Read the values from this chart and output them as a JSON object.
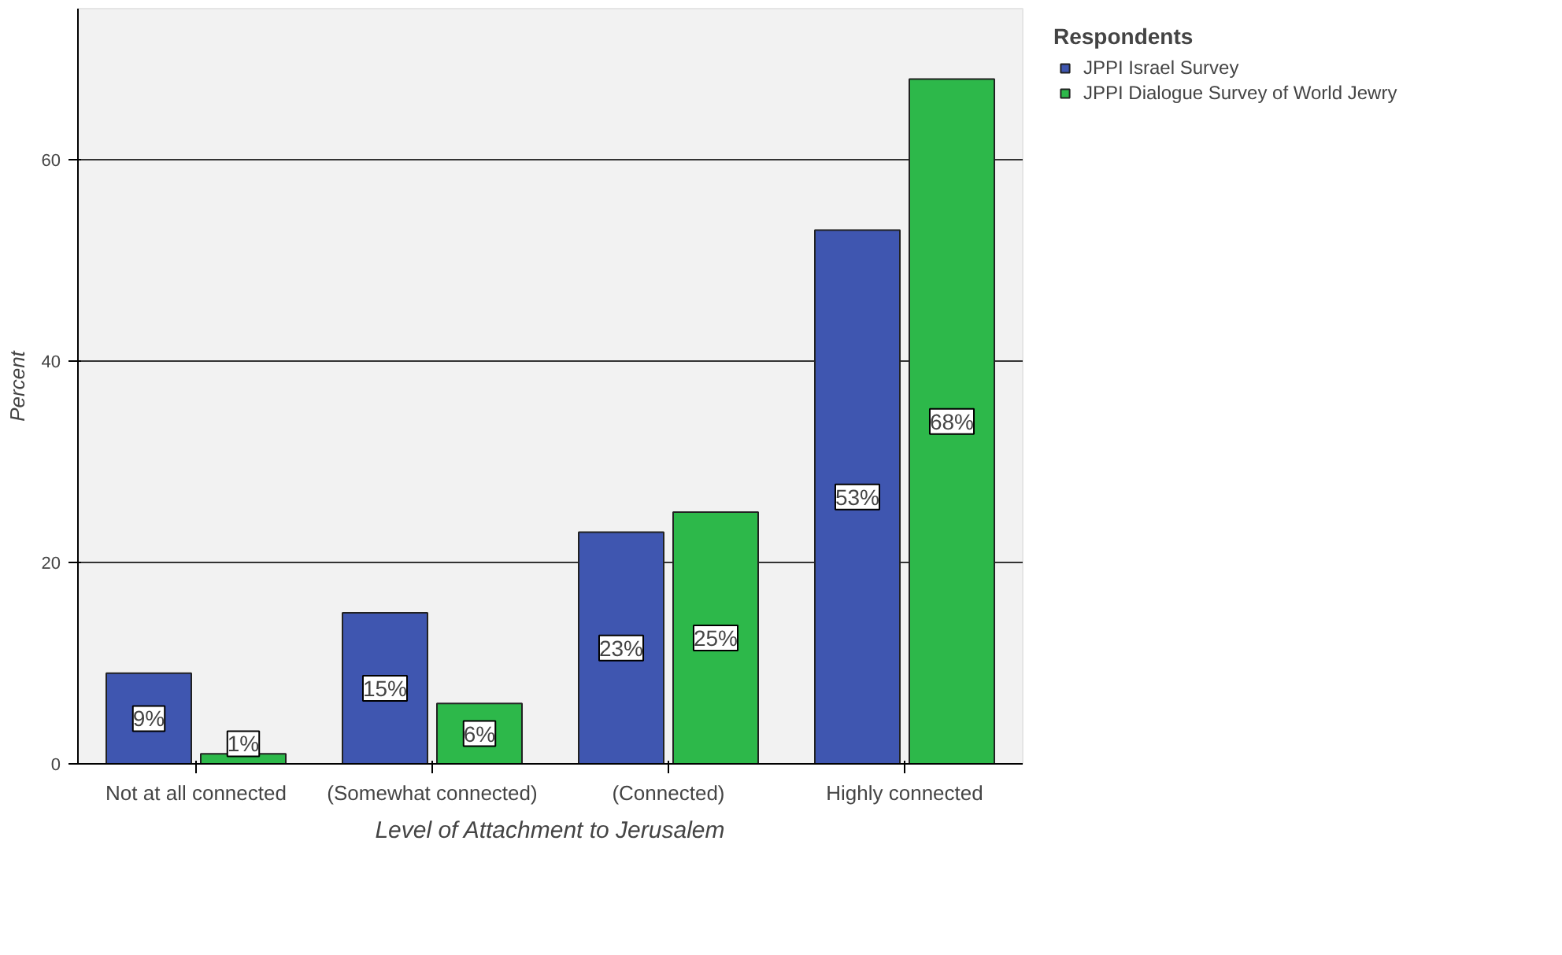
{
  "chart_data": {
    "type": "bar",
    "xlabel": "Level of Attachment to Jerusalem",
    "ylabel": "Percent",
    "legend_title": "Respondents",
    "categories": [
      "Not at all connected",
      "(Somewhat connected)",
      "(Connected)",
      "Highly connected"
    ],
    "series": [
      {
        "name": "JPPI Israel Survey",
        "color": "#3f56b0",
        "values": [
          9,
          15,
          23,
          53
        ],
        "value_labels": [
          "9%",
          "15%",
          "23%",
          "53%"
        ]
      },
      {
        "name": "JPPI Dialogue Survey of World Jewry",
        "color": "#2db84a",
        "values": [
          1,
          6,
          25,
          68
        ],
        "value_labels": [
          "1%",
          "6%",
          "25%",
          "68%"
        ]
      }
    ],
    "ylim": [
      0,
      75
    ],
    "yticks": [
      0,
      20,
      40,
      60
    ],
    "grid": "y",
    "legend": "top right"
  }
}
